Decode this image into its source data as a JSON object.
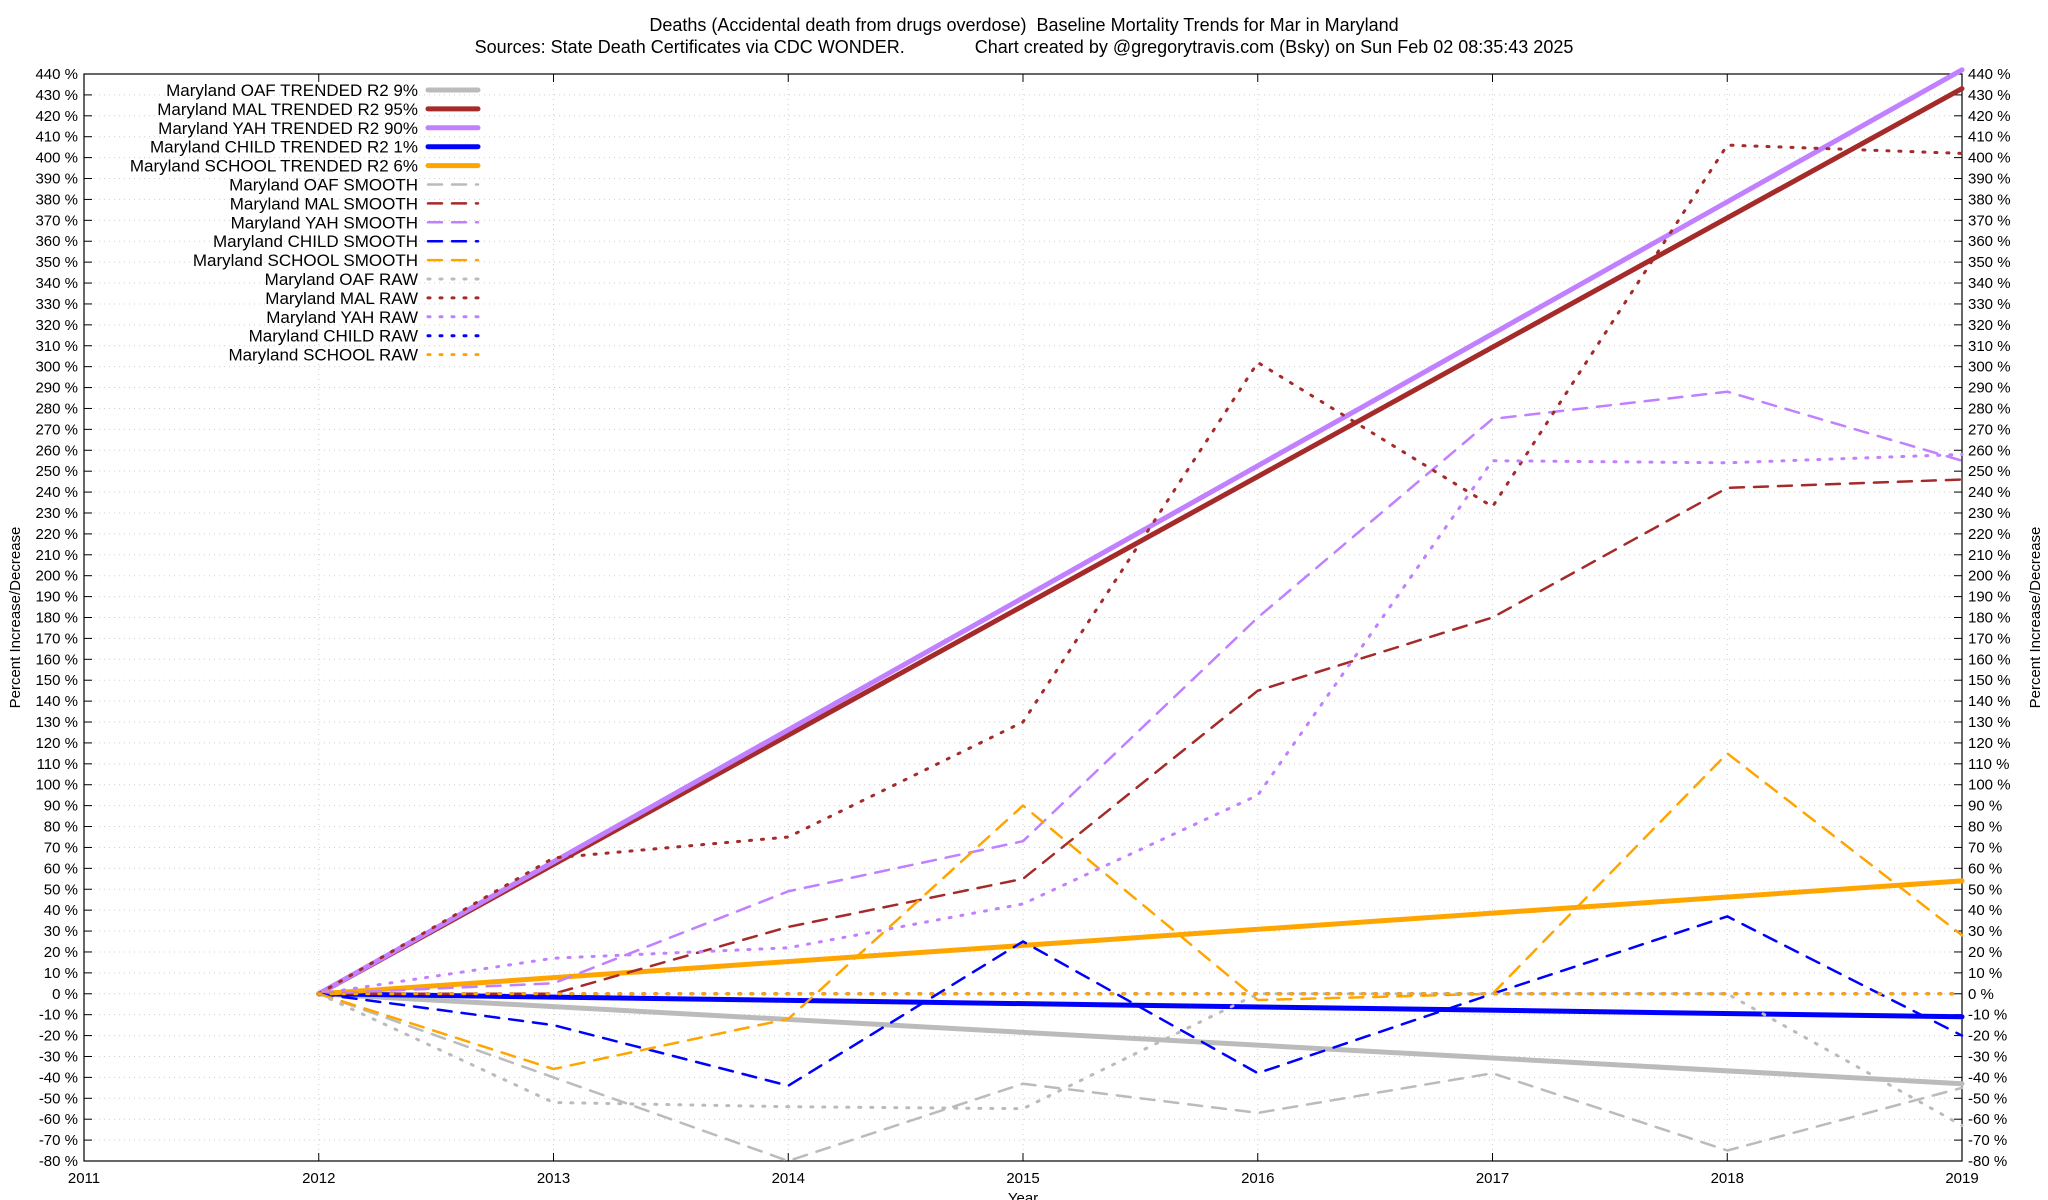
{
  "title": "Deaths (Accidental death from drugs overdose)  Baseline Mortality Trends for Mar in Maryland",
  "subtitle": "Sources: State Death Certificates via CDC WONDER.              Chart created by @gregorytravis.com (Bsky) on Sun Feb 02 08:35:43 2025",
  "chart_data": {
    "type": "line",
    "title": "Deaths (Accidental death from drugs overdose)  Baseline Mortality Trends for Mar in Maryland",
    "xlabel": "Year",
    "ylabel": "Percent Increase/Decrease",
    "y2label": "Percent Increase/Decrease",
    "xlim": [
      2011,
      2019
    ],
    "ylim": [
      -80,
      440
    ],
    "x_ticks": [
      2011,
      2012,
      2013,
      2014,
      2015,
      2016,
      2017,
      2018,
      2019
    ],
    "y_tick_step": 10,
    "y_tick_suffix": " %",
    "grid": true,
    "legend_position": "top-left",
    "series": [
      {
        "name": "Maryland OAF TRENDED R2  9%",
        "color": "#bbbbbb",
        "style": "solid",
        "x": [
          2012,
          2019
        ],
        "y": [
          0,
          -43
        ]
      },
      {
        "name": "Maryland MAL TRENDED R2  95%",
        "color": "#a52a2a",
        "style": "solid",
        "x": [
          2012,
          2019
        ],
        "y": [
          0,
          433
        ]
      },
      {
        "name": "Maryland YAH TRENDED R2  90%",
        "color": "#c080ff",
        "style": "solid",
        "x": [
          2012,
          2019
        ],
        "y": [
          0,
          442
        ]
      },
      {
        "name": "Maryland CHILD TRENDED R2  1%",
        "color": "#0000ff",
        "style": "solid",
        "x": [
          2012,
          2019
        ],
        "y": [
          0,
          -11
        ]
      },
      {
        "name": "Maryland SCHOOL TRENDED R2  6%",
        "color": "#ffa500",
        "style": "solid",
        "x": [
          2012,
          2019
        ],
        "y": [
          0,
          54
        ]
      },
      {
        "name": "Maryland OAF SMOOTH",
        "color": "#bbbbbb",
        "style": "dashed",
        "x": [
          2012,
          2013,
          2014,
          2015,
          2016,
          2017,
          2018,
          2019
        ],
        "y": [
          0,
          -40,
          -80,
          -43,
          -57,
          -38,
          -75,
          -45
        ]
      },
      {
        "name": "Maryland MAL SMOOTH",
        "color": "#a52a2a",
        "style": "dashed",
        "x": [
          2012,
          2013,
          2014,
          2015,
          2016,
          2017,
          2018,
          2019
        ],
        "y": [
          0,
          0,
          32,
          55,
          145,
          180,
          242,
          246
        ]
      },
      {
        "name": "Maryland YAH SMOOTH",
        "color": "#c080ff",
        "style": "dashed",
        "x": [
          2012,
          2013,
          2014,
          2015,
          2016,
          2017,
          2018,
          2019
        ],
        "y": [
          0,
          5,
          49,
          73,
          180,
          275,
          288,
          255
        ]
      },
      {
        "name": "Maryland CHILD SMOOTH",
        "color": "#0000ff",
        "style": "dashed",
        "x": [
          2012,
          2013,
          2014,
          2015,
          2016,
          2017,
          2018,
          2019
        ],
        "y": [
          0,
          -15,
          -44,
          25,
          -38,
          0,
          37,
          -20
        ]
      },
      {
        "name": "Maryland SCHOOL SMOOTH",
        "color": "#ffa500",
        "style": "dashed",
        "x": [
          2012,
          2013,
          2014,
          2015,
          2016,
          2017,
          2018,
          2019
        ],
        "y": [
          0,
          -36,
          -12,
          90,
          -3,
          0,
          115,
          28
        ]
      },
      {
        "name": "Maryland OAF RAW",
        "color": "#bbbbbb",
        "style": "dotted",
        "x": [
          2012,
          2013,
          2014,
          2015,
          2016,
          2017,
          2018,
          2019
        ],
        "y": [
          0,
          -52,
          -54,
          -55,
          0,
          0,
          0,
          -63
        ]
      },
      {
        "name": "Maryland MAL RAW",
        "color": "#a52a2a",
        "style": "dotted",
        "x": [
          2012,
          2013,
          2014,
          2015,
          2016,
          2017,
          2018,
          2019
        ],
        "y": [
          0,
          65,
          75,
          130,
          302,
          233,
          406,
          402
        ]
      },
      {
        "name": "Maryland YAH RAW",
        "color": "#c080ff",
        "style": "dotted",
        "x": [
          2012,
          2013,
          2014,
          2015,
          2016,
          2017,
          2018,
          2019
        ],
        "y": [
          0,
          17,
          22,
          43,
          95,
          255,
          254,
          258
        ]
      },
      {
        "name": "Maryland CHILD RAW",
        "color": "#0000ff",
        "style": "dotted",
        "x": [
          2012,
          2013,
          2014,
          2015,
          2016,
          2017,
          2018,
          2019
        ],
        "y": [
          0,
          0,
          0,
          0,
          0,
          0,
          0,
          0
        ]
      },
      {
        "name": "Maryland SCHOOL RAW",
        "color": "#ffa500",
        "style": "dotted",
        "x": [
          2012,
          2013,
          2014,
          2015,
          2016,
          2017,
          2018,
          2019
        ],
        "y": [
          0,
          0,
          0,
          0,
          0,
          0,
          0,
          0
        ]
      }
    ]
  }
}
